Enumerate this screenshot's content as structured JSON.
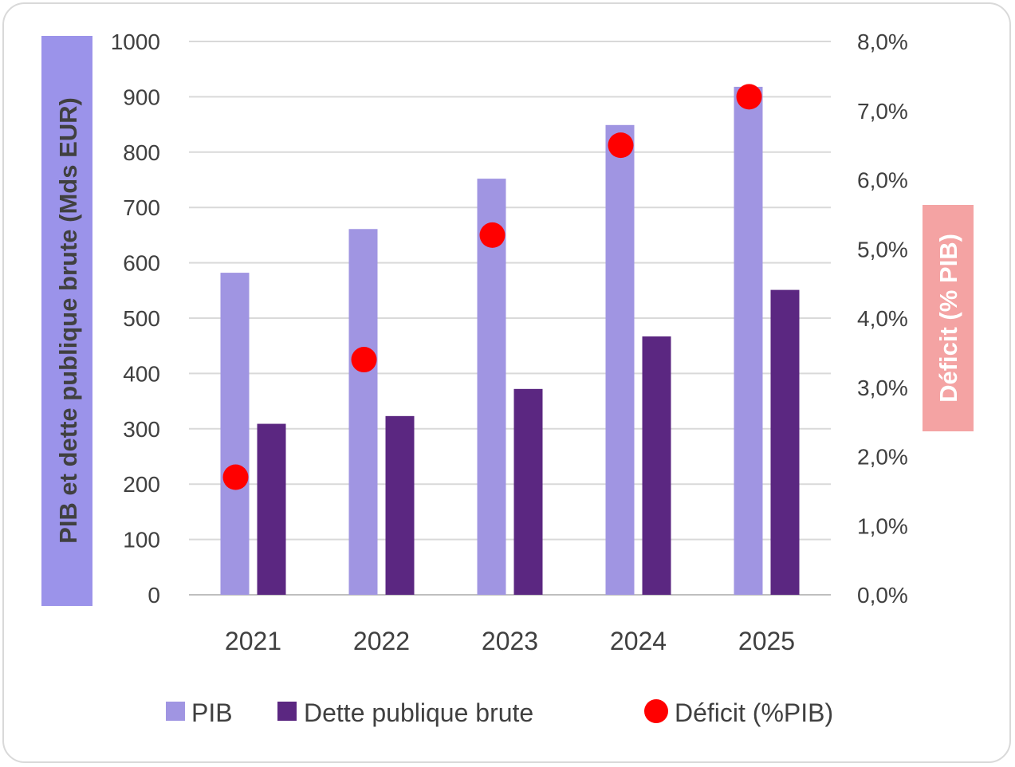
{
  "chart_data": {
    "type": "bar",
    "categories": [
      "2021",
      "2022",
      "2023",
      "2024",
      "2025"
    ],
    "series": [
      {
        "name": "PIB",
        "type": "bar",
        "axis": "left",
        "color": "#a095e2",
        "values": [
          582,
          661,
          752,
          849,
          918
        ]
      },
      {
        "name": "Dette publique brute",
        "type": "bar",
        "axis": "left",
        "color": "#5b2781",
        "values": [
          309,
          323,
          372,
          467,
          551
        ]
      },
      {
        "name": "Déficit (%PIB)",
        "type": "scatter",
        "axis": "right",
        "color": "#ff0000",
        "values": [
          1.7,
          3.4,
          5.2,
          6.5,
          7.2
        ]
      }
    ],
    "ylabel_left": "PIB et dette publique brute (Mds EUR)",
    "ylabel_right": "Déficit (% PIB)",
    "ylim_left": [
      0,
      1000
    ],
    "ylim_right": [
      0,
      8
    ],
    "yticks_left": [
      "0",
      "100",
      "200",
      "300",
      "400",
      "500",
      "600",
      "700",
      "800",
      "900",
      "1000"
    ],
    "yticks_right": [
      "0,0%",
      "1,0%",
      "2,0%",
      "3,0%",
      "4,0%",
      "5,0%",
      "6,0%",
      "7,0%",
      "8,0%"
    ],
    "ylabel_left_bg": "#9b93ea",
    "ylabel_right_bg": "#f4a3a3",
    "gridlines": true,
    "legend_position": "bottom"
  }
}
